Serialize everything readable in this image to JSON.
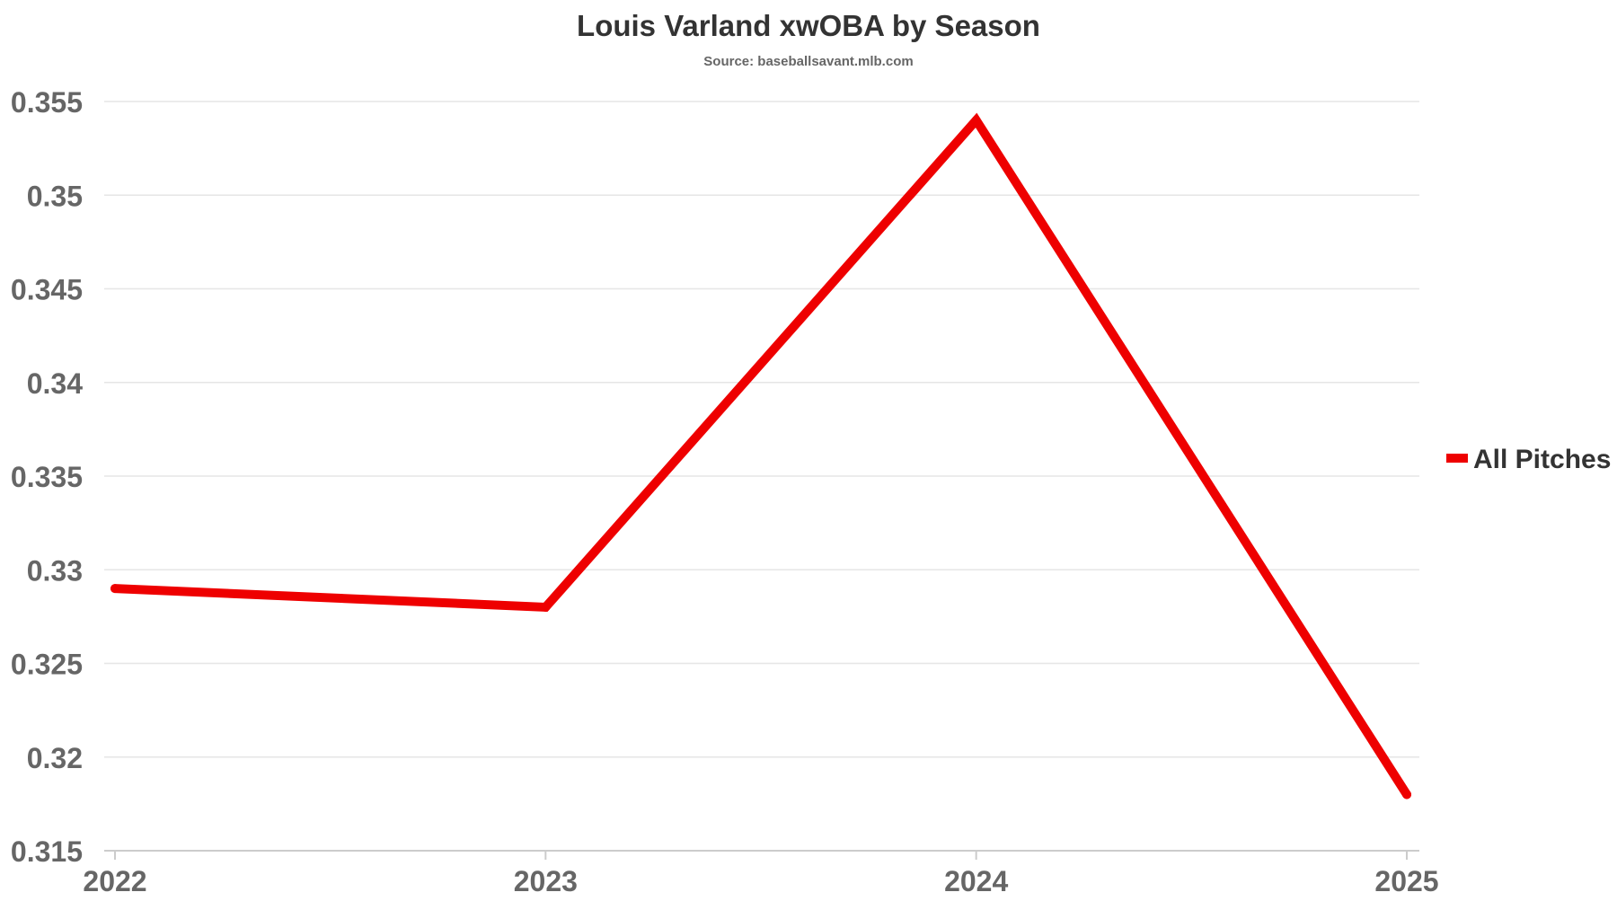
{
  "chart_data": {
    "type": "line",
    "title": "Louis Varland xwOBA by Season",
    "subtitle": "Source: baseballsavant.mlb.com",
    "xlabel": "",
    "ylabel": "",
    "categories": [
      "2022",
      "2023",
      "2024",
      "2025"
    ],
    "series": [
      {
        "name": "All Pitches",
        "color": "#ee0000",
        "values": [
          0.329,
          0.328,
          0.354,
          0.318
        ]
      }
    ],
    "ylim": [
      0.315,
      0.355
    ],
    "yticks": [
      "0.315",
      "0.32",
      "0.325",
      "0.33",
      "0.335",
      "0.34",
      "0.345",
      "0.35",
      "0.355"
    ],
    "grid": "horizontal",
    "legend_position": "right"
  }
}
